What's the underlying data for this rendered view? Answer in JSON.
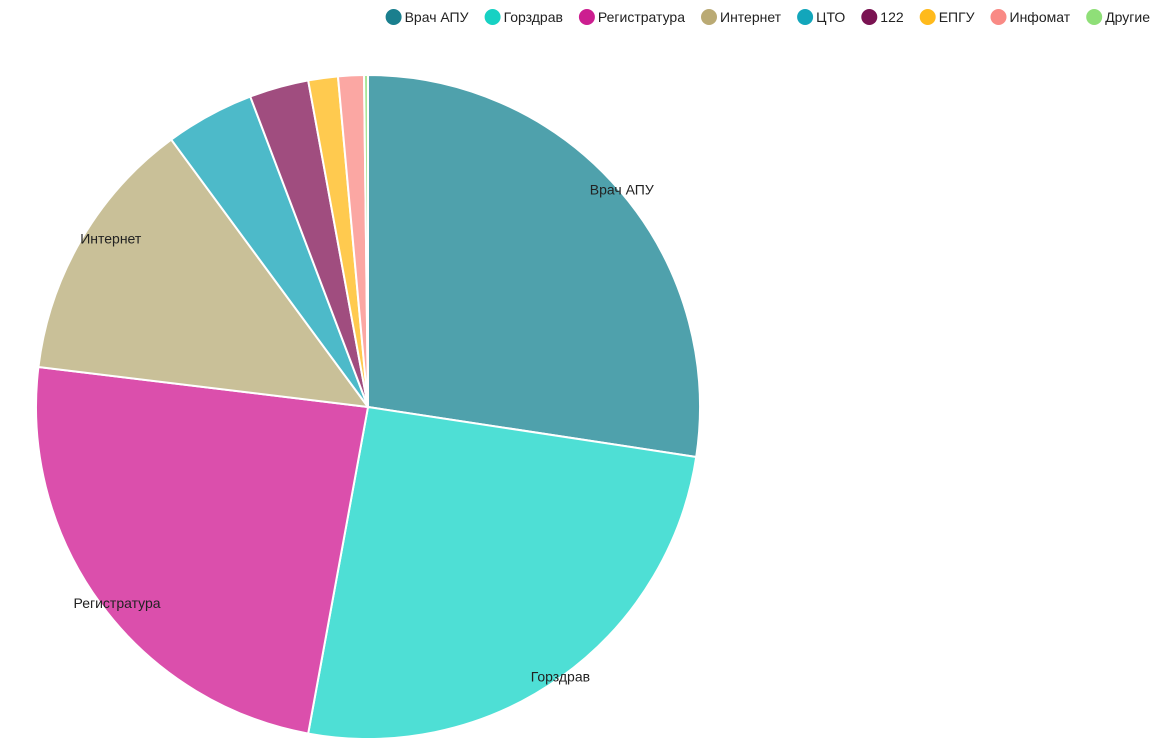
{
  "chart_data": {
    "type": "pie",
    "title": "",
    "legend_position": "top-right",
    "slices": [
      {
        "name": "Врач АПУ",
        "value": 28.5,
        "legend_color": "#1a7f8e",
        "slice_color": "#4fa1ac",
        "show_label": true
      },
      {
        "name": "Горздрав",
        "value": 26.5,
        "legend_color": "#17d1c3",
        "slice_color": "#4edfd5",
        "show_label": true
      },
      {
        "name": "Регистратура",
        "value": 25.0,
        "legend_color": "#cc1e90",
        "slice_color": "#db4fac",
        "show_label": true
      },
      {
        "name": "Интернет",
        "value": 13.5,
        "legend_color": "#baaa74",
        "slice_color": "#c9c098",
        "show_label": true
      },
      {
        "name": "ЦТО",
        "value": 4.5,
        "legend_color": "#13a6bb",
        "slice_color": "#4dbac9",
        "show_label": false
      },
      {
        "name": "122",
        "value": 3.0,
        "legend_color": "#7a1352",
        "slice_color": "#a04d7f",
        "show_label": false
      },
      {
        "name": "ЕПГУ",
        "value": 1.5,
        "legend_color": "#ffba1c",
        "slice_color": "#ffca4f",
        "show_label": false
      },
      {
        "name": "Инфомат",
        "value": 1.3,
        "legend_color": "#f98a85",
        "slice_color": "#fba7a3",
        "show_label": false
      },
      {
        "name": "Другие",
        "value": 0.2,
        "legend_color": "#8fdf78",
        "slice_color": "#a8e697",
        "show_label": false
      }
    ]
  }
}
